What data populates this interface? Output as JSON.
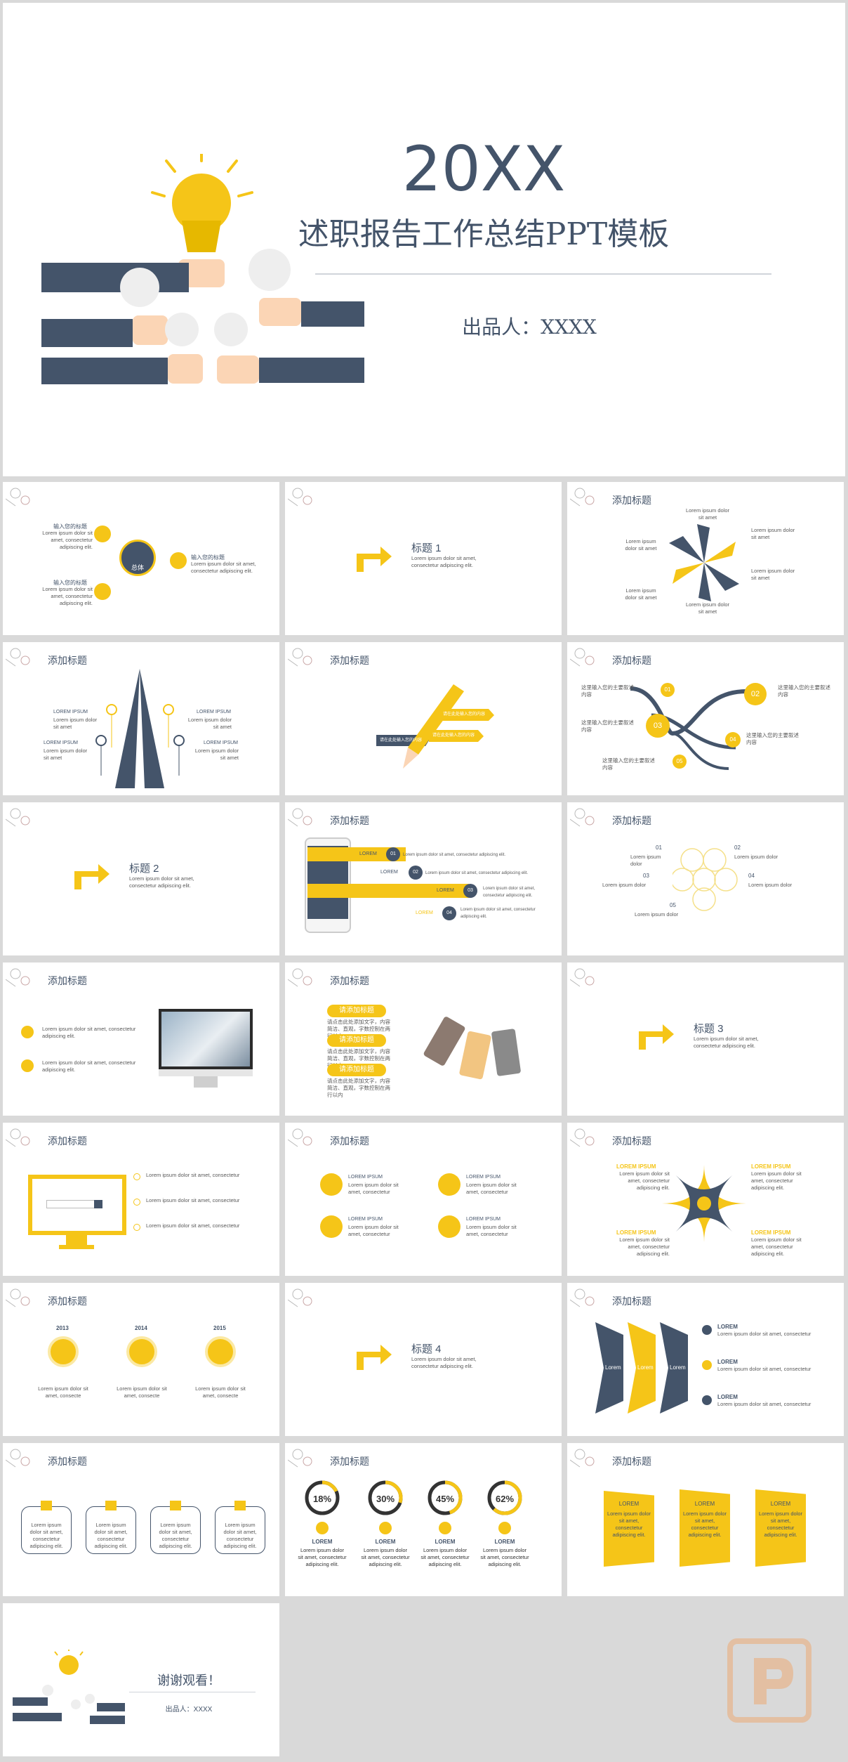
{
  "cover": {
    "year": "20XX",
    "title": "述职报告工作总结PPT模板",
    "author": "出品人：XXXX"
  },
  "common": {
    "add_title": "添加标题",
    "lorem_short": "Lorem ipsum dolor sit amet, consectetur adipiscing elit.",
    "lorem_line": "Lorem ipsum dolor sit amet, consectetur",
    "lorem_caps": "LOREM IPSUM",
    "lorem": "LOREM",
    "lorem_small": "Lorem ipsum dolor sit amet",
    "cn_input": "输入您的标题",
    "cn_paragraph": "这里输入您的主要叙述内容",
    "cn_text": "请点击此处添加文字，内容简洁、直观，字数控制在两行以内"
  },
  "s2": {
    "center": "总体"
  },
  "section_titles": [
    "标题 1",
    "标题 2",
    "标题 3",
    "标题 4"
  ],
  "s6": {
    "left_top": "请在此处输入您的内容",
    "right_top": "请在此处输入您的内容",
    "left_bottom": "请在此处输入您的内容",
    "right_bottom": "请在此处输入您的内容"
  },
  "s7": {
    "nums": [
      "01",
      "02",
      "03",
      "04",
      "05"
    ]
  },
  "s9": {
    "rows": [
      "LOREM",
      "LOREM",
      "LOREM",
      "LOREM"
    ],
    "nums": [
      "01",
      "02",
      "03",
      "04"
    ]
  },
  "s10": {
    "nums": [
      "01",
      "02",
      "03",
      "04",
      "05"
    ],
    "label": "Lorem ipsum dolor"
  },
  "s12": {
    "button": "请添加标题"
  },
  "s17": {
    "years": [
      "2013",
      "2014",
      "2015"
    ],
    "desc": "Lorem ipsum dolor sit amet, consecte"
  },
  "s19": {
    "labels": [
      "Lorem",
      "Lorem",
      "Lorem"
    ]
  },
  "s21": {
    "percents": [
      "18%",
      "30%",
      "45%",
      "62%"
    ],
    "values": [
      18,
      30,
      45,
      62
    ]
  },
  "final": {
    "thanks": "谢谢观看！",
    "author": "出品人：XXXX"
  },
  "colors": {
    "navy": "#44546a",
    "yellow": "#f5c518",
    "grey": "#d9d9d9"
  }
}
